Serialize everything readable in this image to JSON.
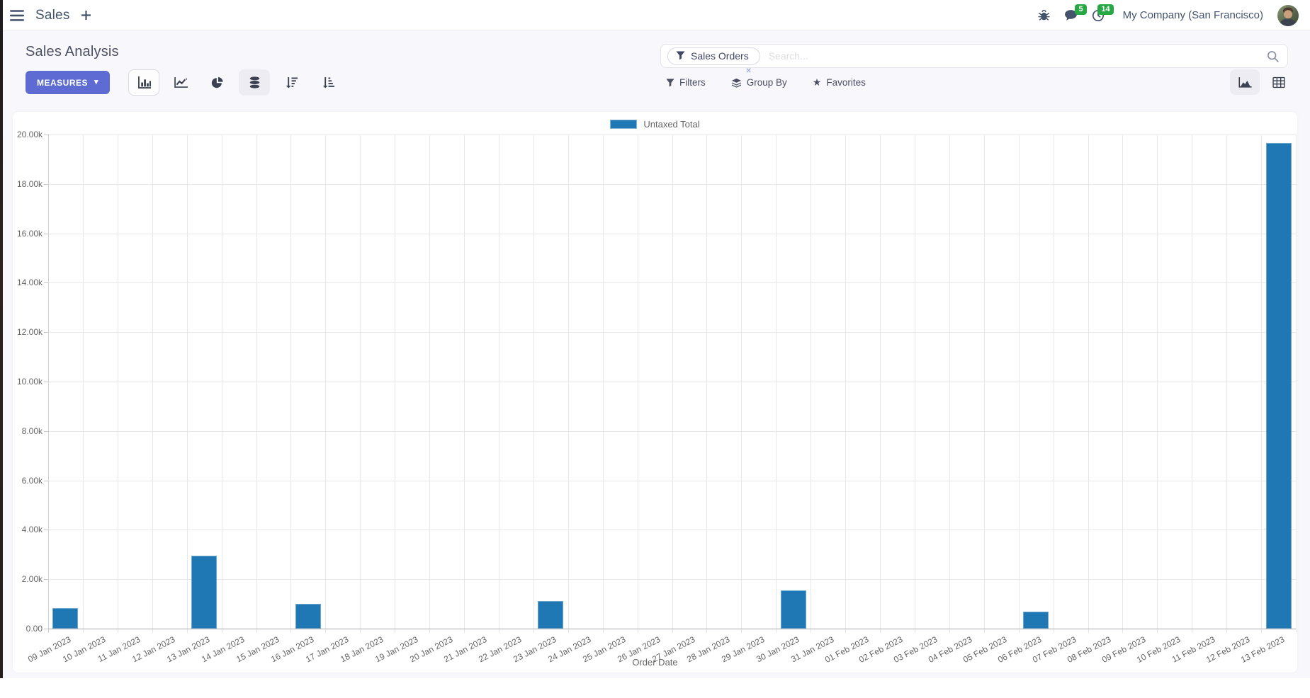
{
  "navbar": {
    "app_name": "Sales",
    "chat_badge": "5",
    "activity_badge": "14",
    "company": "My Company (San Francisco)"
  },
  "control_panel": {
    "title": "Sales Analysis",
    "measures_label": "MEASURES",
    "filters_label": "Filters",
    "group_by_label": "Group By",
    "favorites_label": "Favorites"
  },
  "search": {
    "facet": "Sales Orders",
    "placeholder": "Search..."
  },
  "icons": {
    "caret_down": "▾",
    "star": "★",
    "close": "×"
  },
  "colors": {
    "accent": "#5e6bd2",
    "bar": "#1f77b4",
    "badge_green": "#28a745"
  },
  "chart_data": {
    "type": "bar",
    "title": "",
    "legend": [
      "Untaxed Total"
    ],
    "series_color": "#1f77b4",
    "xlabel": "Order Date",
    "ylabel": "",
    "ylim": [
      0,
      20000
    ],
    "ytick_step": 2000,
    "ytick_labels": [
      "0.00",
      "2.00k",
      "4.00k",
      "6.00k",
      "8.00k",
      "10.00k",
      "12.00k",
      "14.00k",
      "16.00k",
      "18.00k",
      "20.00k"
    ],
    "grid": true,
    "legend_position": "top",
    "categories": [
      "09 Jan 2023",
      "10 Jan 2023",
      "11 Jan 2023",
      "12 Jan 2023",
      "13 Jan 2023",
      "14 Jan 2023",
      "15 Jan 2023",
      "16 Jan 2023",
      "17 Jan 2023",
      "18 Jan 2023",
      "19 Jan 2023",
      "20 Jan 2023",
      "21 Jan 2023",
      "22 Jan 2023",
      "23 Jan 2023",
      "24 Jan 2023",
      "25 Jan 2023",
      "26 Jan 2023",
      "27 Jan 2023",
      "28 Jan 2023",
      "29 Jan 2023",
      "30 Jan 2023",
      "31 Jan 2023",
      "01 Feb 2023",
      "02 Feb 2023",
      "03 Feb 2023",
      "04 Feb 2023",
      "05 Feb 2023",
      "06 Feb 2023",
      "07 Feb 2023",
      "08 Feb 2023",
      "09 Feb 2023",
      "10 Feb 2023",
      "11 Feb 2023",
      "12 Feb 2023",
      "13 Feb 2023"
    ],
    "values": [
      840,
      0,
      0,
      0,
      2950,
      0,
      0,
      1000,
      0,
      0,
      0,
      0,
      0,
      0,
      1130,
      0,
      0,
      0,
      0,
      0,
      0,
      1550,
      0,
      0,
      0,
      0,
      0,
      0,
      690,
      0,
      0,
      0,
      0,
      0,
      0,
      19660
    ]
  }
}
